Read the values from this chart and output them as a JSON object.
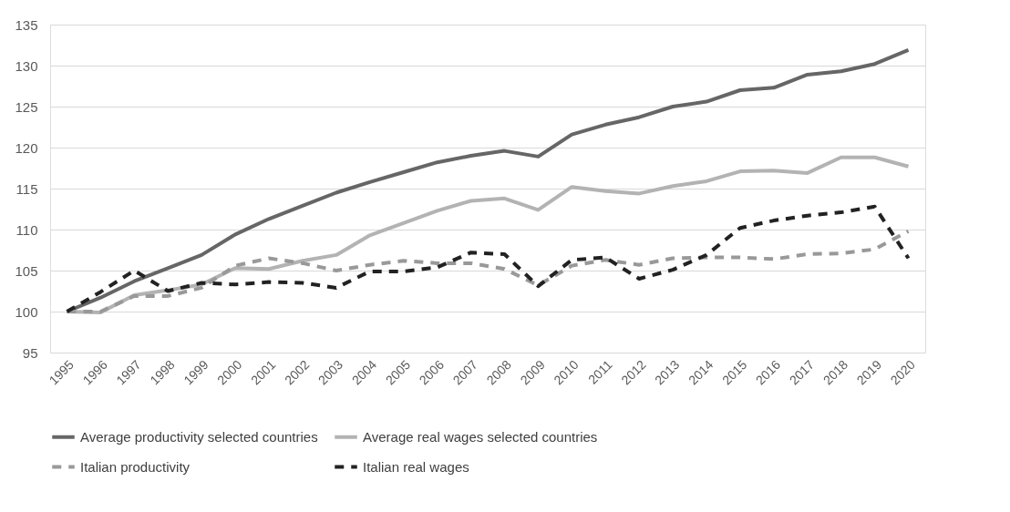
{
  "chart_data": {
    "type": "line",
    "categories": [
      "1995",
      "1996",
      "1997",
      "1998",
      "1999",
      "2000",
      "2001",
      "2002",
      "2003",
      "2004",
      "2005",
      "2006",
      "2007",
      "2008",
      "2009",
      "2010",
      "2011",
      "2012",
      "2013",
      "2014",
      "2015",
      "2016",
      "2017",
      "2018",
      "2019",
      "2020"
    ],
    "series": [
      {
        "name": "Average productivity selected countries",
        "color": "#666666",
        "line_style": "solid",
        "values": [
          100,
          101.7,
          103.7,
          105.3,
          106.9,
          109.4,
          111.3,
          112.9,
          114.5,
          115.8,
          117,
          118.2,
          119,
          119.6,
          118.9,
          121.6,
          122.8,
          123.7,
          125,
          125.6,
          127,
          127.3,
          128.9,
          129.3,
          130.2,
          131.9
        ]
      },
      {
        "name": "Average real wages selected countries",
        "color": "#b3b3b3",
        "line_style": "solid",
        "values": [
          100,
          99.9,
          102,
          102.6,
          103.3,
          105.3,
          105.2,
          106.2,
          106.9,
          109.3,
          110.8,
          112.3,
          113.5,
          113.8,
          112.4,
          115.2,
          114.7,
          114.4,
          115.3,
          115.9,
          117.1,
          117.2,
          116.9,
          118.8,
          118.8,
          117.7
        ]
      },
      {
        "name": "Italian productivity",
        "color": "#999999",
        "line_style": "dashed",
        "values": [
          100,
          100,
          101.9,
          101.9,
          102.9,
          105.6,
          106.5,
          105.9,
          105,
          105.7,
          106.2,
          105.9,
          105.9,
          105.2,
          103.2,
          105.6,
          106.3,
          105.7,
          106.5,
          106.6,
          106.6,
          106.4,
          107,
          107.1,
          107.6,
          109.8
        ]
      },
      {
        "name": "Italian real wages",
        "color": "#222222",
        "line_style": "dashed",
        "values": [
          100,
          102.4,
          105,
          102.5,
          103.5,
          103.3,
          103.6,
          103.5,
          102.9,
          104.9,
          104.9,
          105.4,
          107.2,
          107,
          103.1,
          106.3,
          106.6,
          104,
          105.1,
          106.9,
          110.2,
          111.1,
          111.7,
          112.1,
          112.8,
          106.5
        ]
      }
    ],
    "ylim": [
      95,
      135
    ],
    "yticks": [
      95,
      100,
      105,
      110,
      115,
      120,
      125,
      130,
      135
    ],
    "grid": "y",
    "legend": "bottom",
    "marker": "none"
  }
}
